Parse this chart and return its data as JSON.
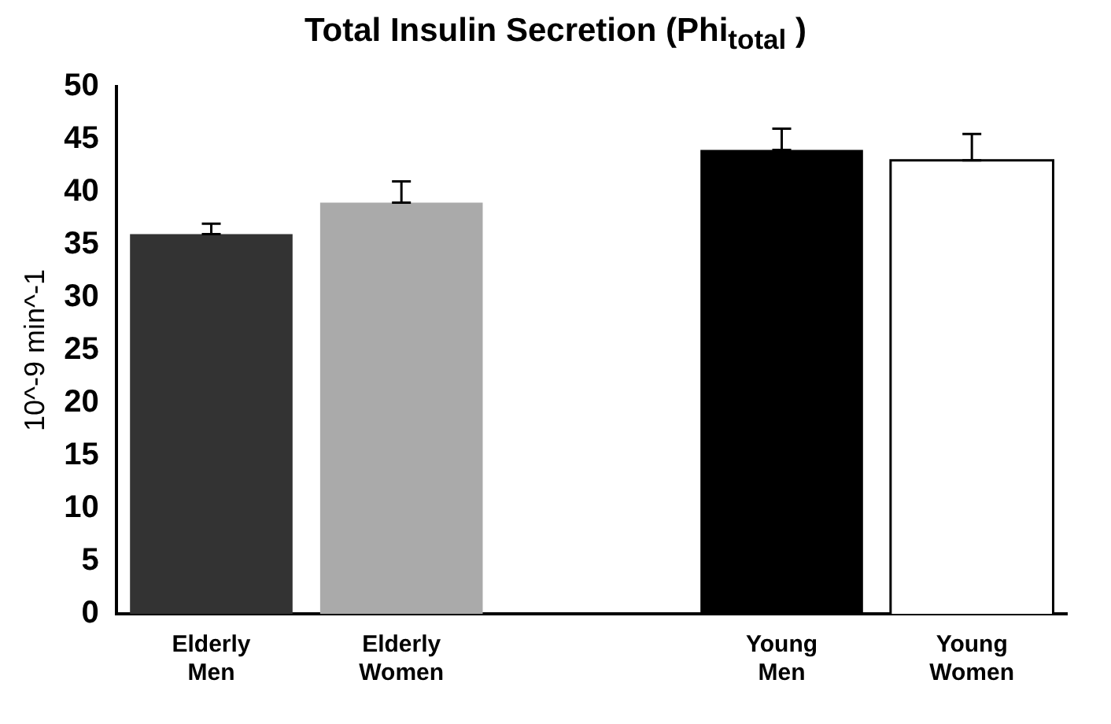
{
  "chart_data": {
    "type": "bar",
    "title": "Total Insulin Secretion (Phi$_{total}$ )",
    "ylabel": "10^-9 min^-1",
    "categories": [
      "Elderly Men",
      "Elderly Women",
      null,
      "Young Men",
      "Young Women"
    ],
    "values": [
      36,
      39,
      null,
      44,
      43
    ],
    "colors": [
      "#333333",
      "#aaaaaa",
      "#ffffff",
      "#000000",
      "#ffffff"
    ],
    "errors": [
      [
        36,
        37
      ],
      [
        39,
        41
      ],
      null,
      [
        44,
        46
      ],
      [
        43,
        45.5
      ]
    ],
    "ylim": [
      0,
      50
    ],
    "yticks": [
      0,
      5,
      10,
      15,
      20,
      25,
      30,
      35,
      40,
      45,
      50
    ],
    "grid": false,
    "legend": false
  }
}
